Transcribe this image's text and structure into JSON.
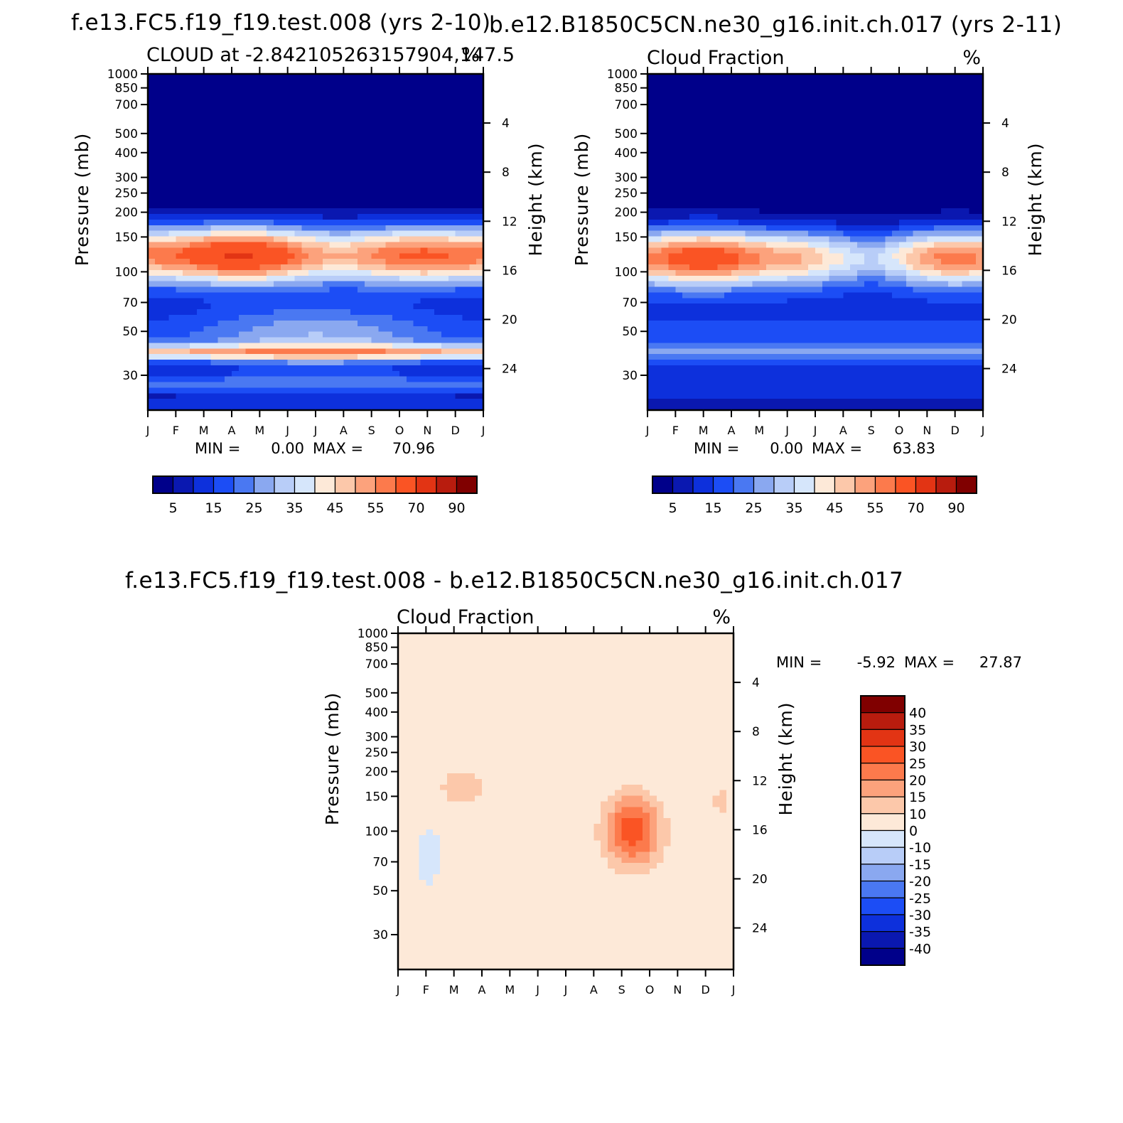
{
  "chart_data": [
    {
      "type": "heatmap",
      "title": "f.e13.FC5.f19_f19.test.008 (yrs 2-10)",
      "subtitle_left": "CLOUD at -2.842105263157904,147.5",
      "subtitle_right": "%",
      "ylabel": "Pressure (mb)",
      "ylabel_right": "Height (km)",
      "months": [
        "J",
        "F",
        "M",
        "A",
        "M",
        "J",
        "J",
        "A",
        "S",
        "O",
        "N",
        "D",
        "J"
      ],
      "pressure_ticks": [
        30,
        50,
        70,
        100,
        150,
        200,
        250,
        300,
        400,
        500,
        700,
        850,
        1000
      ],
      "height_ticks": [
        24,
        20,
        16,
        12,
        8,
        4
      ],
      "ylim": [
        1000,
        20
      ],
      "min_label": "MIN =",
      "min_value": "0.00",
      "max_label": "MAX =",
      "max_value": "70.96",
      "colorbar_labels": [
        "5",
        "15",
        "25",
        "35",
        "45",
        "55",
        "70",
        "90"
      ],
      "levels": [
        0,
        5,
        10,
        15,
        20,
        25,
        30,
        35,
        40,
        45,
        50,
        55,
        60,
        70,
        80,
        90,
        100
      ],
      "palette": [
        "#00008a",
        "#0a18b0",
        "#0d30dc",
        "#1c4df5",
        "#4a78f2",
        "#8aa8f0",
        "#b8cdf8",
        "#d6e6fb",
        "#fde9d8",
        "#fcc8aa",
        "#fca27c",
        "#fc7a4c",
        "#fa5424",
        "#e23414",
        "#b81c0e",
        "#800000"
      ]
    },
    {
      "type": "heatmap",
      "title": "b.e12.B1850C5CN.ne30_g16.init.ch.017 (yrs 2-11)",
      "subtitle_left": "Cloud Fraction",
      "subtitle_right": "%",
      "ylabel": "Pressure (mb)",
      "ylabel_right": "Height (km)",
      "months": [
        "J",
        "F",
        "M",
        "A",
        "M",
        "J",
        "J",
        "A",
        "S",
        "O",
        "N",
        "D",
        "J"
      ],
      "pressure_ticks": [
        30,
        50,
        70,
        100,
        150,
        200,
        250,
        300,
        400,
        500,
        700,
        850,
        1000
      ],
      "height_ticks": [
        24,
        20,
        16,
        12,
        8,
        4
      ],
      "ylim": [
        1000,
        20
      ],
      "min_label": "MIN =",
      "min_value": "0.00",
      "max_label": "MAX =",
      "max_value": "63.83",
      "colorbar_labels": [
        "5",
        "15",
        "25",
        "35",
        "45",
        "55",
        "70",
        "90"
      ],
      "levels": [
        0,
        5,
        10,
        15,
        20,
        25,
        30,
        35,
        40,
        45,
        50,
        55,
        60,
        70,
        80,
        90,
        100
      ]
    },
    {
      "type": "heatmap",
      "title": "f.e13.FC5.f19_f19.test.008 - b.e12.B1850C5CN.ne30_g16.init.ch.017",
      "subtitle_left": "Cloud Fraction",
      "subtitle_right": "%",
      "ylabel": "Pressure (mb)",
      "ylabel_right": "Height (km)",
      "months": [
        "J",
        "F",
        "M",
        "A",
        "M",
        "J",
        "J",
        "A",
        "S",
        "O",
        "N",
        "D",
        "J"
      ],
      "pressure_ticks": [
        30,
        50,
        70,
        100,
        150,
        200,
        250,
        300,
        400,
        500,
        700,
        850,
        1000
      ],
      "height_ticks": [
        24,
        20,
        16,
        12,
        8,
        4
      ],
      "ylim": [
        1000,
        20
      ],
      "min_label": "MIN =",
      "min_value": "-5.92",
      "max_label": "MAX =",
      "max_value": "27.87",
      "colorbar_labels": [
        "40",
        "35",
        "30",
        "25",
        "20",
        "15",
        "10",
        "0",
        "-10",
        "-15",
        "-20",
        "-25",
        "-30",
        "-35",
        "-40"
      ],
      "levels": [
        -50,
        -40,
        -35,
        -30,
        -25,
        -20,
        -15,
        -10,
        0,
        10,
        15,
        20,
        25,
        30,
        35,
        40,
        50
      ],
      "palette": [
        "#00008a",
        "#0a18b0",
        "#0d30dc",
        "#1c4df5",
        "#4a78f2",
        "#8aa8f0",
        "#b8cdf8",
        "#d6e6fb",
        "#fde9d8",
        "#fcc8aa",
        "#fca27c",
        "#fc7a4c",
        "#fa5424",
        "#e23414",
        "#b81c0e",
        "#800000"
      ]
    }
  ]
}
